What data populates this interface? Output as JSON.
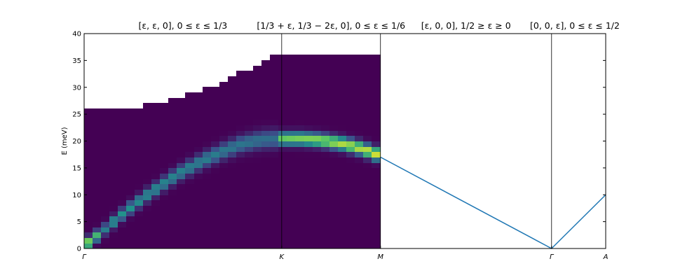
{
  "chart_data": {
    "type": "heatmap",
    "ylabel": "E (meV)",
    "ylim": [
      0,
      40
    ],
    "yticks": [
      0,
      5,
      10,
      15,
      20,
      25,
      30,
      35,
      40
    ],
    "grid": false,
    "colormap": "viridis",
    "segments": [
      {
        "title": "$[\\epsilon, \\epsilon, 0], 0 \\leq \\epsilon \\leq 1/3$",
        "display": "[ε, ε, 0], 0 ≤ ε ≤ 1/3",
        "from": "Γ",
        "to": "K"
      },
      {
        "title": "$[1/3+\\epsilon, 1/3-2\\epsilon, 0], 0 \\leq \\epsilon \\leq 1/6$",
        "display": "[1/3 + ε, 1/3 − 2ε, 0], 0 ≤ ε ≤ 1/6",
        "from": "K",
        "to": "M"
      },
      {
        "title": "$[\\epsilon, 0, 0], 1/2 \\geq \\epsilon \\geq 0$",
        "display": "[ε, 0, 0], 1/2 ≥ ε ≥ 0",
        "from": "M",
        "to": "Γ"
      },
      {
        "title": "$[0, 0, \\epsilon], 0 \\leq \\epsilon \\leq 1/2$",
        "display": "[0, 0, ε], 0 ≤ ε ≤ 1/2",
        "from": "Γ",
        "to": "A"
      }
    ],
    "x_points": [
      {
        "label": "Γ",
        "pos": 0
      },
      {
        "label": "K",
        "pos": 1.0
      },
      {
        "label": "M",
        "pos": 1.5
      },
      {
        "label": "Γ",
        "pos": 2.366
      },
      {
        "label": "A",
        "pos": 2.64
      }
    ],
    "heatmap": {
      "x_range": [
        0,
        1.5
      ],
      "n_columns": 35,
      "energy_bin": 1.0,
      "max_energy_steps": [
        {
          "x_end": 0.29,
          "emax": 26
        },
        {
          "x_end": 0.44,
          "emax": 27
        },
        {
          "x_end": 0.53,
          "emax": 28
        },
        {
          "x_end": 0.59,
          "emax": 29
        },
        {
          "x_end": 0.68,
          "emax": 30
        },
        {
          "x_end": 0.74,
          "emax": 31
        },
        {
          "x_end": 0.79,
          "emax": 32
        },
        {
          "x_end": 0.85,
          "emax": 33
        },
        {
          "x_end": 0.88,
          "emax": 34
        },
        {
          "x_end": 0.94,
          "emax": 35
        },
        {
          "x_end": 1.5,
          "emax": 36
        }
      ],
      "branches": [
        {
          "name": "Γ–K",
          "x": [
            0.0,
            0.1,
            0.2,
            0.3,
            0.4,
            0.5,
            0.6,
            0.7,
            0.8,
            0.9,
            1.0
          ],
          "energy": [
            0.5,
            3.4,
            6.6,
            9.4,
            12.0,
            14.4,
            16.4,
            18.1,
            19.5,
            20.3,
            20.5
          ]
        },
        {
          "name": "K–M",
          "x": [
            1.0,
            1.1,
            1.2,
            1.3,
            1.4,
            1.5
          ],
          "energy": [
            20.5,
            20.5,
            20.2,
            19.6,
            18.7,
            17.4
          ]
        }
      ]
    },
    "line": {
      "color": "#1f77b4",
      "x": [
        1.5,
        2.366,
        2.64
      ],
      "y": [
        17.0,
        0.0,
        10.0
      ]
    }
  }
}
